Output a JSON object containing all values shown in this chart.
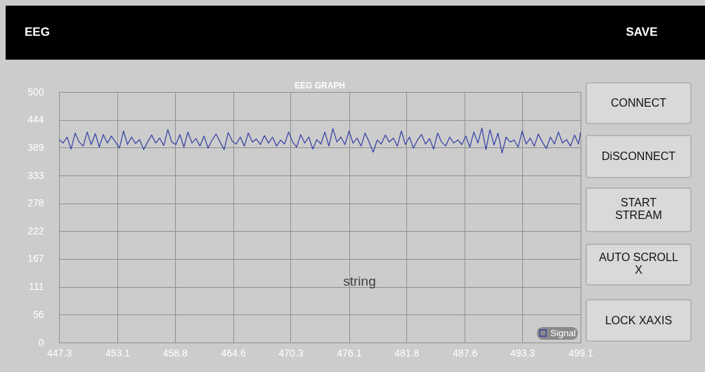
{
  "chart_data": {
    "type": "line",
    "title": "EEG GRAPH",
    "x": [
      447.3,
      447.7,
      448.1,
      448.5,
      448.9,
      449.3,
      449.7,
      450.1,
      450.5,
      450.9,
      451.3,
      451.7,
      452.1,
      452.5,
      452.9,
      453.3,
      453.7,
      454.1,
      454.5,
      454.9,
      455.3,
      455.7,
      456.1,
      456.5,
      456.9,
      457.3,
      457.7,
      458.1,
      458.5,
      458.9,
      459.3,
      459.7,
      460.1,
      460.5,
      460.9,
      461.3,
      461.7,
      462.1,
      462.5,
      462.9,
      463.3,
      463.7,
      464.1,
      464.5,
      464.9,
      465.3,
      465.7,
      466.1,
      466.5,
      466.9,
      467.3,
      467.7,
      468.1,
      468.5,
      468.9,
      469.3,
      469.7,
      470.1,
      470.5,
      470.9,
      471.3,
      471.7,
      472.1,
      472.5,
      472.9,
      473.3,
      473.7,
      474.1,
      474.5,
      474.9,
      475.3,
      475.7,
      476.1,
      476.5,
      476.9,
      477.3,
      477.7,
      478.1,
      478.5,
      478.9,
      479.3,
      479.7,
      480.1,
      480.5,
      480.9,
      481.3,
      481.7,
      482.1,
      482.5,
      482.9,
      483.3,
      483.7,
      484.1,
      484.5,
      484.9,
      485.3,
      485.7,
      486.1,
      486.5,
      486.9,
      487.3,
      487.7,
      488.1,
      488.5,
      488.9,
      489.3,
      489.7,
      490.1,
      490.5,
      490.9,
      491.3,
      491.7,
      492.1,
      492.5,
      492.9,
      493.3,
      493.7,
      494.1,
      494.5,
      494.9,
      495.3,
      495.7,
      496.1,
      496.5,
      496.9,
      497.3,
      497.7,
      498.1,
      498.5,
      498.9,
      499.1
    ],
    "series": [
      {
        "name": "Signal",
        "color": "#3a46a6",
        "values": [
          405,
          398,
          410,
          386,
          418,
          400,
          392,
          420,
          395,
          417,
          390,
          415,
          398,
          412,
          400,
          388,
          422,
          395,
          410,
          397,
          405,
          385,
          400,
          414,
          398,
          408,
          393,
          425,
          400,
          395,
          415,
          390,
          420,
          398,
          407,
          392,
          412,
          388,
          404,
          416,
          400,
          385,
          419,
          402,
          396,
          410,
          392,
          418,
          400,
          406,
          395,
          413,
          398,
          410,
          392,
          404,
          396,
          420,
          400,
          390,
          415,
          398,
          410,
          386,
          405,
          396,
          420,
          392,
          427,
          400,
          410,
          395,
          422,
          398,
          408,
          392,
          418,
          400,
          380,
          404,
          396,
          414,
          400,
          408,
          392,
          422,
          395,
          410,
          388,
          404,
          415,
          396,
          407,
          386,
          418,
          400,
          392,
          410,
          398,
          404,
          395,
          412,
          390,
          420,
          398,
          428,
          385,
          425,
          394,
          418,
          378,
          410,
          400,
          404,
          390,
          422,
          396,
          408,
          392,
          416,
          400,
          387,
          410,
          396,
          420,
          398,
          405,
          392,
          414,
          396,
          420
        ]
      }
    ],
    "xlim": [
      447.3,
      499.1
    ],
    "xticks": [
      447.3,
      453.1,
      458.8,
      464.6,
      470.3,
      476.1,
      481.8,
      487.6,
      493.3,
      499.1
    ],
    "ylim": [
      0,
      500
    ],
    "yticks": [
      0,
      {
        "value": 55.6,
        "label": "56"
      },
      {
        "value": 111.1,
        "label": "111"
      },
      {
        "value": 166.7,
        "label": "167"
      },
      {
        "value": 222.2,
        "label": "222"
      },
      {
        "value": 277.8,
        "label": "278"
      },
      {
        "value": 333.3,
        "label": "333"
      },
      {
        "value": 388.9,
        "label": "389"
      },
      {
        "value": 444.4,
        "label": "444"
      },
      500
    ],
    "grid": true,
    "legend": "bottom right",
    "marker": "none",
    "line_style": "solid",
    "annotations": [
      "EEG",
      "SAVE",
      "CONNECT",
      "DiSCONNECT",
      "START\nSTREAM",
      "AUTO SCROLL\nX",
      "LOCK XAXIS",
      "string"
    ]
  }
}
